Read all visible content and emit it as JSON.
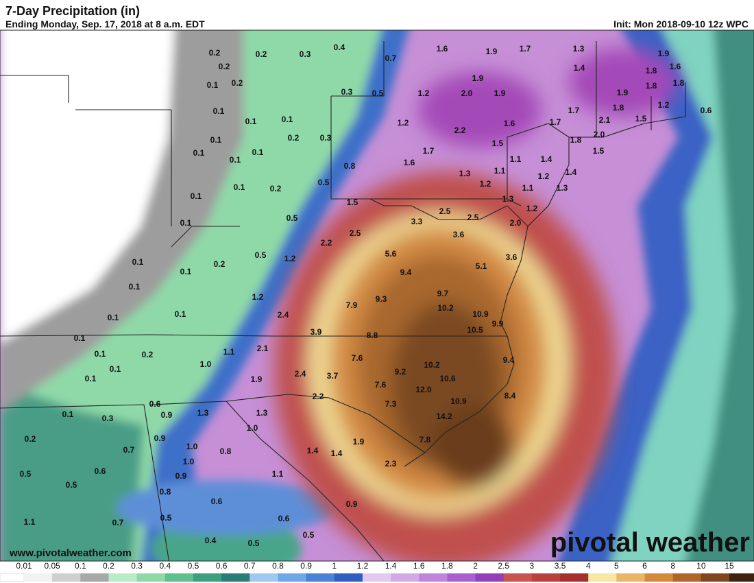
{
  "header": {
    "title": "7-Day Precipitation (in)",
    "subtitle": "Ending Monday, Sep. 17, 2018 at 8 a.m. EDT",
    "init": "Init: Mon 2018-09-10 12z WPC"
  },
  "map": {
    "values": [
      "0.2",
      "0.2",
      "0.3",
      "0.4",
      "0.2",
      "0.7",
      "1.6",
      "1.9",
      "1.7",
      "1.3",
      "1.9",
      "0.1",
      "0.2",
      "1.9",
      "1.4",
      "1.8",
      "1.6",
      "0.3",
      "0.5",
      "1.2",
      "2.0",
      "1.9",
      "1.9",
      "1.8",
      "1.8",
      "0.1",
      "0.1",
      "0.1",
      "1.7",
      "1.8",
      "1.2",
      "0.6",
      "1.2",
      "2.2",
      "1.6",
      "1.7",
      "2.1",
      "1.5",
      "0.1",
      "0.2",
      "0.3",
      "2.0",
      "1.8",
      "1.5",
      "0.1",
      "0.1",
      "0.1",
      "1.7",
      "1.5",
      "1.6",
      "1.1",
      "1.4",
      "1.4",
      "0.8",
      "1.3",
      "1.1",
      "1.2",
      "0.1",
      "0.2",
      "0.5",
      "1.2",
      "1.1",
      "1.3",
      "0.1",
      "1.5",
      "1.3",
      "1.2",
      "0.1",
      "0.5",
      "2.5",
      "2.5",
      "3.3",
      "2.0",
      "2.2",
      "2.5",
      "3.6",
      "0.5",
      "1.2",
      "5.6",
      "3.6",
      "0.1",
      "0.2",
      "5.1",
      "0.1",
      "9.4",
      "0.1",
      "1.2",
      "9.3",
      "9.7",
      "7.9",
      "10.2",
      "0.1",
      "0.1",
      "2.4",
      "10.9",
      "9.9",
      "3.9",
      "8.8",
      "10.5",
      "0.1",
      "0.1",
      "0.2",
      "1.1",
      "2.1",
      "7.6",
      "9.4",
      "1.0",
      "0.1",
      "10.2",
      "2.4",
      "3.7",
      "9.2",
      "10.6",
      "0.1",
      "1.9",
      "7.6",
      "12.0",
      "8.4",
      "2.2",
      "10.9",
      "0.6",
      "7.3",
      "0.1",
      "0.3",
      "0.9",
      "1.3",
      "1.3",
      "14.2",
      "0.9",
      "1.0",
      "0.2",
      "0.7",
      "1.0",
      "0.8",
      "1.4",
      "1.4",
      "1.9",
      "7.8",
      "1.0",
      "0.6",
      "0.5",
      "0.9",
      "1.1",
      "2.3",
      "0.5",
      "0.8",
      "0.6",
      "0.9",
      "1.1",
      "0.7",
      "0.5",
      "0.6",
      "0.5",
      "0.4",
      "0.5"
    ]
  },
  "legend": {
    "labels": [
      "0.01",
      "0.05",
      "0.1",
      "0.2",
      "0.3",
      "0.4",
      "0.5",
      "0.6",
      "0.7",
      "0.8",
      "0.9",
      "1",
      "1.2",
      "1.4",
      "1.6",
      "1.8",
      "2",
      "2.5",
      "3",
      "3.5",
      "4",
      "5",
      "6",
      "8",
      "10",
      "15"
    ]
  },
  "footer": {
    "website": "www.pivotalweather.com",
    "logo": "pivotal weather"
  }
}
